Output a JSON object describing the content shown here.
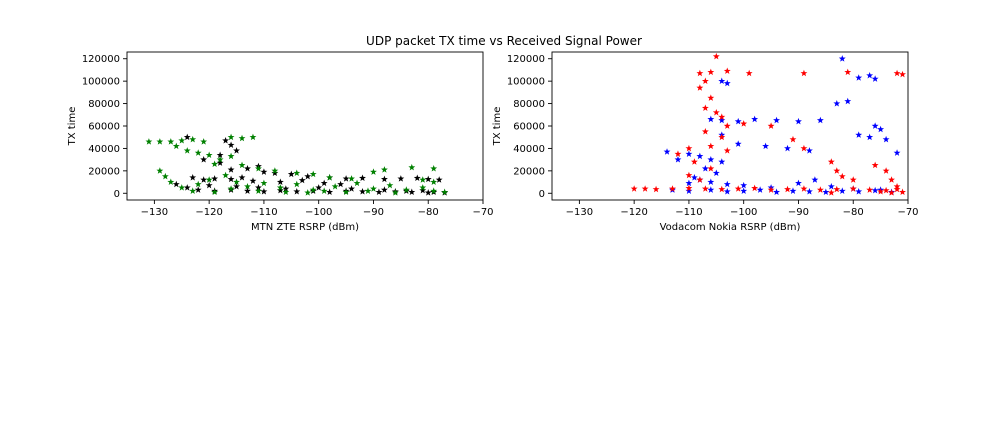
{
  "suptitle": "UDP packet TX time vs Received Signal Power",
  "chart_data": [
    {
      "type": "scatter",
      "title": "",
      "xlabel": "MTN ZTE RSRP (dBm)",
      "ylabel": "TX time",
      "xlim": [
        -135,
        -70
      ],
      "ylim": [
        -6000,
        126000
      ],
      "xticks": [
        -130,
        -120,
        -110,
        -100,
        -90,
        -80,
        -70
      ],
      "xtick_labels": [
        "−130",
        "−120",
        "−110",
        "−100",
        "−90",
        "−80",
        "−70"
      ],
      "yticks": [
        0,
        20000,
        40000,
        60000,
        80000,
        100000,
        120000
      ],
      "ytick_labels": [
        "0",
        "20000",
        "40000",
        "60000",
        "80000",
        "100000",
        "120000"
      ],
      "grid": false,
      "marker": "star",
      "series": [
        {
          "color": "#000000",
          "points": [
            [
              -124,
              50000
            ],
            [
              -117,
              47000
            ],
            [
              -116,
              43000
            ],
            [
              -115,
              38000
            ],
            [
              -118,
              34000
            ],
            [
              -121,
              30000
            ],
            [
              -118,
              27000
            ],
            [
              -111,
              24000
            ],
            [
              -113,
              22000
            ],
            [
              -116,
              21000
            ],
            [
              -110,
              19000
            ],
            [
              -108,
              18000
            ],
            [
              -105,
              17000
            ],
            [
              -102,
              15000
            ],
            [
              -98,
              14000
            ],
            [
              -95,
              13000
            ],
            [
              -92,
              13500
            ],
            [
              -88,
              12500
            ],
            [
              -85,
              13000
            ],
            [
              -82,
              13500
            ],
            [
              -80,
              12500
            ],
            [
              -78,
              12000
            ],
            [
              -123,
              14000
            ],
            [
              -121,
              12000
            ],
            [
              -119,
              13000
            ],
            [
              -116,
              12500
            ],
            [
              -114,
              14000
            ],
            [
              -112,
              11000
            ],
            [
              -107,
              10000
            ],
            [
              -103,
              11500
            ],
            [
              -99,
              9000
            ],
            [
              -96,
              8000
            ],
            [
              -124,
              5000
            ],
            [
              -122,
              3000
            ],
            [
              -119,
              2000
            ],
            [
              -116,
              3000
            ],
            [
              -113,
              2000
            ],
            [
              -110,
              1500
            ],
            [
              -107,
              2500
            ],
            [
              -104,
              1500
            ],
            [
              -101,
              2000
            ],
            [
              -98,
              1000
            ],
            [
              -95,
              2000
            ],
            [
              -92,
              1500
            ],
            [
              -89,
              1000
            ],
            [
              -86,
              1500
            ],
            [
              -83,
              1000
            ],
            [
              -80,
              500
            ],
            [
              -77,
              500
            ],
            [
              -126,
              8000
            ],
            [
              -120,
              7000
            ],
            [
              -115,
              6000
            ],
            [
              -111,
              5000
            ],
            [
              -106,
              4000
            ],
            [
              -100,
              5000
            ],
            [
              -94,
              4000
            ],
            [
              -88,
              3000
            ],
            [
              -84,
              2000
            ],
            [
              -81,
              2500
            ],
            [
              -79,
              1000
            ]
          ]
        },
        {
          "color": "#008000",
          "points": [
            [
              -131,
              46000
            ],
            [
              -129,
              46000
            ],
            [
              -127,
              46000
            ],
            [
              -125,
              47000
            ],
            [
              -123,
              48000
            ],
            [
              -121,
              46000
            ],
            [
              -116,
              50000
            ],
            [
              -114,
              49000
            ],
            [
              -112,
              50000
            ],
            [
              -126,
              42000
            ],
            [
              -124,
              38000
            ],
            [
              -122,
              36000
            ],
            [
              -120,
              34000
            ],
            [
              -118,
              30000
            ],
            [
              -116,
              33000
            ],
            [
              -119,
              26000
            ],
            [
              -114,
              25000
            ],
            [
              -111,
              22000
            ],
            [
              -108,
              20000
            ],
            [
              -104,
              18000
            ],
            [
              -101,
              17000
            ],
            [
              -98,
              14000
            ],
            [
              -94,
              13000
            ],
            [
              -90,
              19000
            ],
            [
              -88,
              21000
            ],
            [
              -83,
              23000
            ],
            [
              -79,
              22000
            ],
            [
              -81,
              12000
            ],
            [
              -79,
              10000
            ],
            [
              -129,
              20000
            ],
            [
              -128,
              15000
            ],
            [
              -127,
              10000
            ],
            [
              -125,
              5000
            ],
            [
              -122,
              8000
            ],
            [
              -120,
              12000
            ],
            [
              -117,
              16000
            ],
            [
              -115,
              10000
            ],
            [
              -113,
              6000
            ],
            [
              -110,
              9000
            ],
            [
              -107,
              5000
            ],
            [
              -104,
              8000
            ],
            [
              -101,
              3000
            ],
            [
              -97,
              6000
            ],
            [
              -93,
              9000
            ],
            [
              -90,
              4000
            ],
            [
              -87,
              7000
            ],
            [
              -84,
              3000
            ],
            [
              -81,
              5000
            ],
            [
              -79,
              2000
            ],
            [
              -77,
              1000
            ],
            [
              -123,
              2000
            ],
            [
              -119,
              1000
            ],
            [
              -116,
              4000
            ],
            [
              -111,
              2000
            ],
            [
              -106,
              1000
            ],
            [
              -102,
              500
            ],
            [
              -99,
              2000
            ],
            [
              -95,
              1000
            ],
            [
              -91,
              2000
            ],
            [
              -86,
              500
            ]
          ]
        }
      ]
    },
    {
      "type": "scatter",
      "title": "",
      "xlabel": "Vodacom Nokia RSRP (dBm)",
      "ylabel": "TX time",
      "xlim": [
        -135,
        -70
      ],
      "ylim": [
        -6000,
        126000
      ],
      "xticks": [
        -130,
        -120,
        -110,
        -100,
        -90,
        -80,
        -70
      ],
      "xtick_labels": [
        "−130",
        "−120",
        "−110",
        "−100",
        "−90",
        "−80",
        "−70"
      ],
      "yticks": [
        0,
        20000,
        40000,
        60000,
        80000,
        100000,
        120000
      ],
      "ytick_labels": [
        "0",
        "20000",
        "40000",
        "60000",
        "80000",
        "100000",
        "120000"
      ],
      "grid": false,
      "marker": "star",
      "series": [
        {
          "color": "#0000ff",
          "points": [
            [
              -114,
              37000
            ],
            [
              -112,
              30000
            ],
            [
              -110,
              35000
            ],
            [
              -108,
              33000
            ],
            [
              -106,
              30000
            ],
            [
              -104,
              28000
            ],
            [
              -107,
              22000
            ],
            [
              -105,
              18000
            ],
            [
              -108,
              12000
            ],
            [
              -110,
              9000
            ],
            [
              -104,
              100000
            ],
            [
              -103,
              98000
            ],
            [
              -106,
              66000
            ],
            [
              -104,
              65000
            ],
            [
              -101,
              64000
            ],
            [
              -98,
              66000
            ],
            [
              -94,
              65000
            ],
            [
              -90,
              64000
            ],
            [
              -86,
              65000
            ],
            [
              -104,
              52000
            ],
            [
              -101,
              44000
            ],
            [
              -96,
              42000
            ],
            [
              -92,
              40000
            ],
            [
              -88,
              38000
            ],
            [
              -82,
              120000
            ],
            [
              -79,
              103000
            ],
            [
              -77,
              105000
            ],
            [
              -76,
              102000
            ],
            [
              -83,
              80000
            ],
            [
              -81,
              82000
            ],
            [
              -79,
              52000
            ],
            [
              -77,
              50000
            ],
            [
              -76,
              60000
            ],
            [
              -75,
              57000
            ],
            [
              -74,
              48000
            ],
            [
              -72,
              36000
            ],
            [
              -113,
              3000
            ],
            [
              -110,
              2000
            ],
            [
              -106,
              3000
            ],
            [
              -103,
              1500
            ],
            [
              -100,
              2000
            ],
            [
              -97,
              3000
            ],
            [
              -94,
              1000
            ],
            [
              -91,
              2000
            ],
            [
              -88,
              1500
            ],
            [
              -85,
              1000
            ],
            [
              -82,
              2000
            ],
            [
              -79,
              1500
            ],
            [
              -76,
              2500
            ],
            [
              -73,
              1000
            ],
            [
              -109,
              14000
            ],
            [
              -106,
              10000
            ],
            [
              -103,
              8000
            ],
            [
              -100,
              7000
            ],
            [
              -95,
              5000
            ],
            [
              -90,
              9000
            ],
            [
              -87,
              12000
            ],
            [
              -84,
              6000
            ],
            [
              -80,
              4000
            ],
            [
              -75,
              3000
            ]
          ]
        },
        {
          "color": "#ff0000",
          "points": [
            [
              -120,
              4000
            ],
            [
              -118,
              4000
            ],
            [
              -116,
              3500
            ],
            [
              -113,
              4000
            ],
            [
              -110,
              4500
            ],
            [
              -107,
              4000
            ],
            [
              -104,
              3500
            ],
            [
              -101,
              4000
            ],
            [
              -98,
              4500
            ],
            [
              -95,
              3000
            ],
            [
              -92,
              3500
            ],
            [
              -89,
              4000
            ],
            [
              -86,
              3000
            ],
            [
              -83,
              3500
            ],
            [
              -80,
              4000
            ],
            [
              -77,
              3000
            ],
            [
              -74,
              2500
            ],
            [
              -72,
              3500
            ],
            [
              -108,
              107000
            ],
            [
              -106,
              108000
            ],
            [
              -105,
              122000
            ],
            [
              -103,
              109000
            ],
            [
              -107,
              100000
            ],
            [
              -108,
              94000
            ],
            [
              -106,
              85000
            ],
            [
              -107,
              76000
            ],
            [
              -105,
              72000
            ],
            [
              -104,
              68000
            ],
            [
              -103,
              60000
            ],
            [
              -107,
              55000
            ],
            [
              -104,
              50000
            ],
            [
              -106,
              42000
            ],
            [
              -103,
              38000
            ],
            [
              -99,
              107000
            ],
            [
              -89,
              107000
            ],
            [
              -81,
              108000
            ],
            [
              -72,
              107000
            ],
            [
              -71,
              106000
            ],
            [
              -100,
              62000
            ],
            [
              -95,
              60000
            ],
            [
              -91,
              48000
            ],
            [
              -89,
              40000
            ],
            [
              -110,
              40000
            ],
            [
              -112,
              35000
            ],
            [
              -109,
              28000
            ],
            [
              -106,
              22000
            ],
            [
              -110,
              16000
            ],
            [
              -108,
              12000
            ],
            [
              -84,
              28000
            ],
            [
              -83,
              20000
            ],
            [
              -82,
              15000
            ],
            [
              -80,
              12000
            ],
            [
              -76,
              25000
            ],
            [
              -74,
              20000
            ],
            [
              -73,
              12000
            ],
            [
              -72,
              6000
            ],
            [
              -75,
              1500
            ],
            [
              -73,
              500
            ],
            [
              -71,
              1000
            ],
            [
              -84,
              500
            ]
          ]
        }
      ]
    }
  ]
}
